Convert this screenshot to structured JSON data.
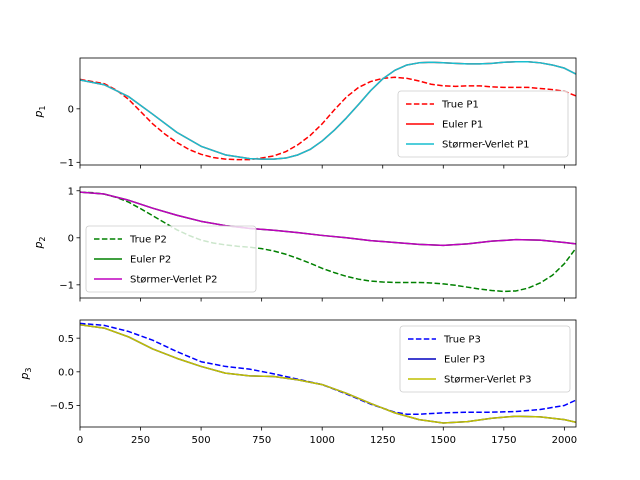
{
  "chart_data": [
    {
      "type": "line",
      "ylabel_sym": "p",
      "ylabel_sub": "1",
      "xlim": [
        0,
        2048
      ],
      "ylim": [
        -1.05,
        0.95
      ],
      "xticks": [
        0,
        250,
        500,
        750,
        1000,
        1250,
        1500,
        1750,
        2000
      ],
      "show_xticklabels": false,
      "yticks": [
        -1,
        0
      ],
      "yticklabels": [
        "−1",
        "0"
      ],
      "legend": "lower-right",
      "series": [
        {
          "name": "True P1",
          "color": "#ff0000",
          "dash": "dashed",
          "x": [
            0,
            100,
            150,
            200,
            250,
            300,
            350,
            400,
            450,
            500,
            550,
            600,
            650,
            700,
            750,
            800,
            850,
            900,
            950,
            1000,
            1050,
            1100,
            1150,
            1200,
            1250,
            1300,
            1350,
            1400,
            1450,
            1500,
            1550,
            1600,
            1650,
            1700,
            1750,
            1800,
            1850,
            1900,
            1950,
            2000,
            2048
          ],
          "y": [
            0.55,
            0.47,
            0.35,
            0.18,
            -0.05,
            -0.28,
            -0.47,
            -0.63,
            -0.76,
            -0.85,
            -0.91,
            -0.94,
            -0.95,
            -0.95,
            -0.92,
            -0.88,
            -0.8,
            -0.67,
            -0.5,
            -0.28,
            -0.02,
            0.22,
            0.4,
            0.51,
            0.57,
            0.59,
            0.57,
            0.52,
            0.46,
            0.43,
            0.42,
            0.43,
            0.43,
            0.41,
            0.4,
            0.4,
            0.4,
            0.38,
            0.36,
            0.33,
            0.24
          ]
        },
        {
          "name": "Euler P1",
          "color": "#ff0000",
          "dash": "solid",
          "x": [
            0,
            100,
            200,
            300,
            400,
            500,
            600,
            700,
            750,
            800,
            850,
            900,
            950,
            1000,
            1050,
            1100,
            1150,
            1200,
            1250,
            1300,
            1350,
            1400,
            1450,
            1500,
            1550,
            1600,
            1650,
            1700,
            1750,
            1800,
            1850,
            1900,
            1950,
            2000,
            2048
          ],
          "y": [
            0.54,
            0.45,
            0.23,
            -0.1,
            -0.44,
            -0.7,
            -0.86,
            -0.93,
            -0.94,
            -0.94,
            -0.92,
            -0.86,
            -0.76,
            -0.6,
            -0.4,
            -0.17,
            0.08,
            0.34,
            0.56,
            0.72,
            0.82,
            0.86,
            0.87,
            0.86,
            0.85,
            0.84,
            0.84,
            0.85,
            0.87,
            0.88,
            0.88,
            0.86,
            0.82,
            0.76,
            0.65
          ]
        },
        {
          "name": "Størmer-Verlet P1",
          "color": "#17becf",
          "dash": "solid",
          "x": [
            0,
            100,
            200,
            300,
            400,
            500,
            600,
            700,
            750,
            800,
            850,
            900,
            950,
            1000,
            1050,
            1100,
            1150,
            1200,
            1250,
            1300,
            1350,
            1400,
            1450,
            1500,
            1550,
            1600,
            1650,
            1700,
            1750,
            1800,
            1850,
            1900,
            1950,
            2000,
            2048
          ],
          "y": [
            0.54,
            0.45,
            0.23,
            -0.1,
            -0.44,
            -0.7,
            -0.86,
            -0.93,
            -0.94,
            -0.94,
            -0.92,
            -0.86,
            -0.76,
            -0.6,
            -0.4,
            -0.17,
            0.08,
            0.34,
            0.56,
            0.72,
            0.82,
            0.86,
            0.87,
            0.86,
            0.85,
            0.84,
            0.84,
            0.85,
            0.87,
            0.88,
            0.88,
            0.86,
            0.82,
            0.76,
            0.65
          ]
        }
      ]
    },
    {
      "type": "line",
      "ylabel_sym": "p",
      "ylabel_sub": "2",
      "xlim": [
        0,
        2048
      ],
      "ylim": [
        -1.28,
        1.08
      ],
      "xticks": [
        0,
        250,
        500,
        750,
        1000,
        1250,
        1500,
        1750,
        2000
      ],
      "show_xticklabels": false,
      "yticks": [
        -1,
        0,
        1
      ],
      "yticklabels": [
        "−1",
        "0",
        "1"
      ],
      "legend": "lower-left",
      "series": [
        {
          "name": "True P2",
          "color": "#008000",
          "dash": "dashed",
          "x": [
            0,
            50,
            100,
            150,
            200,
            250,
            300,
            350,
            400,
            450,
            500,
            550,
            600,
            650,
            700,
            750,
            800,
            850,
            900,
            950,
            1000,
            1050,
            1100,
            1150,
            1200,
            1250,
            1300,
            1350,
            1400,
            1450,
            1500,
            1550,
            1600,
            1650,
            1700,
            1750,
            1800,
            1850,
            1900,
            1950,
            2000,
            2048
          ],
          "y": [
            0.97,
            0.96,
            0.93,
            0.86,
            0.76,
            0.62,
            0.47,
            0.32,
            0.17,
            0.05,
            -0.05,
            -0.11,
            -0.15,
            -0.18,
            -0.2,
            -0.23,
            -0.28,
            -0.35,
            -0.44,
            -0.54,
            -0.65,
            -0.74,
            -0.82,
            -0.88,
            -0.92,
            -0.94,
            -0.95,
            -0.95,
            -0.95,
            -0.96,
            -0.98,
            -1.01,
            -1.05,
            -1.09,
            -1.12,
            -1.14,
            -1.13,
            -1.07,
            -0.96,
            -0.8,
            -0.55,
            -0.22
          ]
        },
        {
          "name": "Euler P2",
          "color": "#008000",
          "dash": "solid",
          "x": [
            0,
            100,
            200,
            300,
            400,
            500,
            600,
            700,
            800,
            900,
            1000,
            1100,
            1200,
            1300,
            1400,
            1500,
            1600,
            1700,
            1800,
            1900,
            2000,
            2048
          ],
          "y": [
            0.97,
            0.93,
            0.8,
            0.63,
            0.48,
            0.35,
            0.26,
            0.2,
            0.16,
            0.11,
            0.05,
            0.0,
            -0.06,
            -0.1,
            -0.14,
            -0.16,
            -0.13,
            -0.07,
            -0.04,
            -0.05,
            -0.1,
            -0.13
          ]
        },
        {
          "name": "Størmer-Verlet P2",
          "color": "#bf00bf",
          "dash": "solid",
          "x": [
            0,
            100,
            200,
            300,
            400,
            500,
            600,
            700,
            800,
            900,
            1000,
            1100,
            1200,
            1300,
            1400,
            1500,
            1600,
            1700,
            1800,
            1900,
            2000,
            2048
          ],
          "y": [
            0.97,
            0.93,
            0.8,
            0.63,
            0.48,
            0.35,
            0.26,
            0.2,
            0.16,
            0.11,
            0.05,
            0.0,
            -0.06,
            -0.1,
            -0.14,
            -0.16,
            -0.13,
            -0.07,
            -0.04,
            -0.05,
            -0.1,
            -0.13
          ]
        }
      ]
    },
    {
      "type": "line",
      "ylabel_sym": "p",
      "ylabel_sub": "3",
      "xlim": [
        0,
        2048
      ],
      "ylim": [
        -0.82,
        0.77
      ],
      "xticks": [
        0,
        250,
        500,
        750,
        1000,
        1250,
        1500,
        1750,
        2000
      ],
      "xticklabels": [
        "0",
        "250",
        "500",
        "750",
        "1000",
        "1250",
        "1500",
        "1750",
        "2000"
      ],
      "show_xticklabels": true,
      "yticks": [
        -0.5,
        0.0,
        0.5
      ],
      "yticklabels": [
        "−0.5",
        "0.0",
        "0.5"
      ],
      "legend": "upper-right",
      "series": [
        {
          "name": "True P3",
          "color": "#0000ff",
          "dash": "dashed",
          "x": [
            0,
            100,
            200,
            300,
            400,
            500,
            600,
            700,
            800,
            900,
            1000,
            1100,
            1200,
            1300,
            1350,
            1400,
            1500,
            1600,
            1700,
            1800,
            1900,
            2000,
            2048
          ],
          "y": [
            0.72,
            0.69,
            0.6,
            0.47,
            0.3,
            0.15,
            0.08,
            0.04,
            -0.03,
            -0.11,
            -0.19,
            -0.33,
            -0.48,
            -0.6,
            -0.63,
            -0.63,
            -0.61,
            -0.6,
            -0.6,
            -0.59,
            -0.56,
            -0.5,
            -0.42
          ]
        },
        {
          "name": "Euler P3",
          "color": "#0000bf",
          "dash": "solid",
          "x": [
            0,
            100,
            200,
            300,
            400,
            500,
            600,
            700,
            800,
            900,
            1000,
            1100,
            1200,
            1300,
            1400,
            1500,
            1600,
            1700,
            1800,
            1900,
            2000,
            2048
          ],
          "y": [
            0.7,
            0.65,
            0.52,
            0.34,
            0.2,
            0.08,
            -0.02,
            -0.06,
            -0.07,
            -0.12,
            -0.19,
            -0.32,
            -0.47,
            -0.61,
            -0.71,
            -0.76,
            -0.74,
            -0.69,
            -0.66,
            -0.67,
            -0.71,
            -0.75
          ]
        },
        {
          "name": "Størmer-Verlet P3",
          "color": "#bfbf00",
          "dash": "solid",
          "x": [
            0,
            100,
            200,
            300,
            400,
            500,
            600,
            700,
            800,
            900,
            1000,
            1100,
            1200,
            1300,
            1400,
            1500,
            1600,
            1700,
            1800,
            1900,
            2000,
            2048
          ],
          "y": [
            0.7,
            0.65,
            0.52,
            0.34,
            0.2,
            0.08,
            -0.02,
            -0.06,
            -0.07,
            -0.12,
            -0.19,
            -0.32,
            -0.47,
            -0.61,
            -0.71,
            -0.76,
            -0.74,
            -0.69,
            -0.66,
            -0.67,
            -0.71,
            -0.75
          ]
        }
      ]
    }
  ]
}
